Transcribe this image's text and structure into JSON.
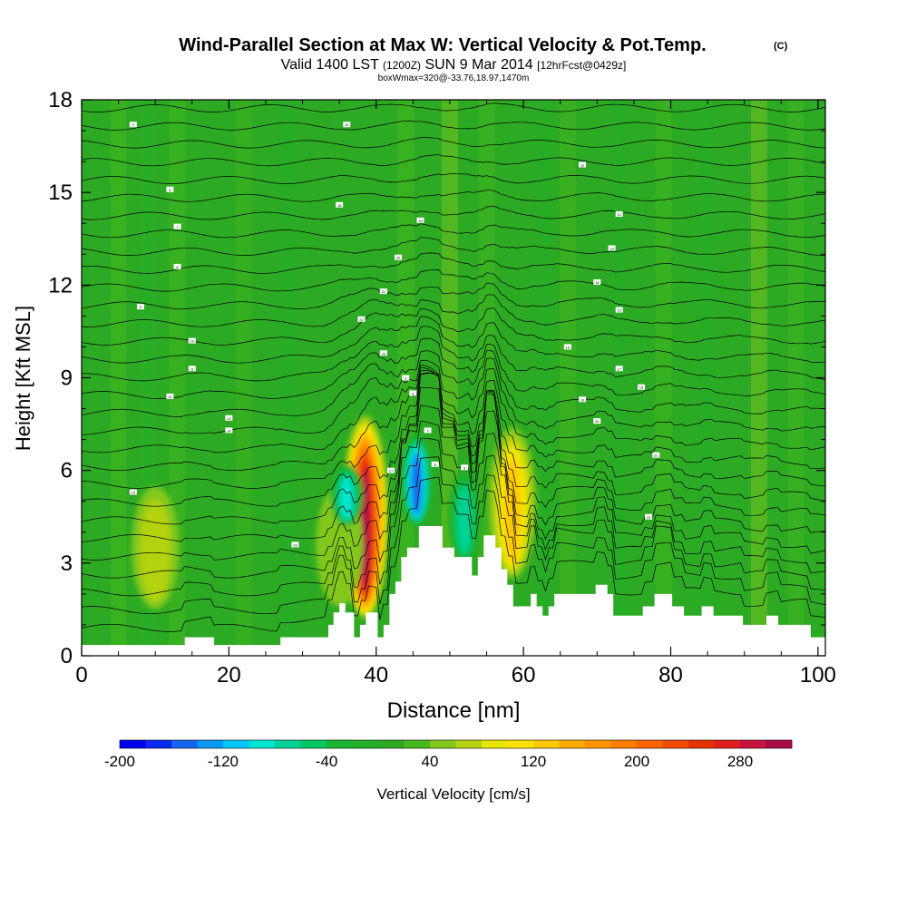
{
  "chart_data": {
    "type": "heatmap",
    "title": "Wind-Parallel Section at Max W: Vertical Velocity & Pot.Temp.",
    "title_mark": "(C)",
    "subtitle_main": "Valid 1400 LST",
    "subtitle_z": "(1200Z)",
    "subtitle_date": "SUN 9 Mar 2014",
    "subtitle_fcst": "[12hrFcst@0429z]",
    "subtitle_box": "boxWmax=320@-33.76,18.97,1470m",
    "xlabel": "Distance [nm]",
    "ylabel": "Height [Kft MSL]",
    "xlim": [
      0,
      101
    ],
    "ylim": [
      0,
      18
    ],
    "x_ticks": [
      "0",
      "20",
      "40",
      "60",
      "80",
      "100"
    ],
    "y_ticks": [
      "0",
      "3",
      "6",
      "9",
      "12",
      "15",
      "18"
    ],
    "colorbar": {
      "label": "Vertical Velocity [cm/s]",
      "ticks": [
        "-200",
        "-120",
        "-40",
        "40",
        "120",
        "200",
        "280"
      ],
      "levels": [
        -200,
        -180,
        -160,
        -140,
        -120,
        -100,
        -80,
        -60,
        -40,
        -20,
        0,
        20,
        40,
        60,
        80,
        100,
        120,
        140,
        160,
        180,
        200,
        220,
        240,
        260,
        280,
        300,
        320
      ],
      "colors": [
        "#0000ee",
        "#0a28f0",
        "#1464f0",
        "#0a96f5",
        "#00c8f8",
        "#00e6d2",
        "#00d296",
        "#00c864",
        "#19b432",
        "#23af28",
        "#2daa23",
        "#46b91e",
        "#82c81e",
        "#b4d20f",
        "#e6e600",
        "#ffe100",
        "#ffc800",
        "#ffaa00",
        "#ff9600",
        "#ff7d00",
        "#ff6400",
        "#f04b00",
        "#e63200",
        "#e11e1e",
        "#c8143c",
        "#aa0a46"
      ]
    },
    "updrafts": [
      {
        "x": 38.5,
        "z_bottom": 1.2,
        "z_top": 7.8,
        "w_max": 320
      },
      {
        "x": 58.5,
        "z_bottom": 2.5,
        "z_top": 7.4,
        "w_max": 130
      },
      {
        "x": 10,
        "z_bottom": 1.5,
        "z_top": 5.5,
        "w_max": 80
      },
      {
        "x": 35,
        "z_bottom": 1.6,
        "z_top": 5.5,
        "w_max": 60
      }
    ],
    "downdrafts": [
      {
        "x": 45.5,
        "z_bottom": 4.2,
        "z_top": 7.2,
        "w_min": -170
      },
      {
        "x": 36,
        "z_bottom": 4.2,
        "z_top": 6.2,
        "w_min": -120
      },
      {
        "x": 52,
        "z_bottom": 3.0,
        "z_top": 6.0,
        "w_min": -90
      }
    ],
    "terrain_profile": [
      [
        0,
        0.35
      ],
      [
        14,
        0.35
      ],
      [
        14,
        0.6
      ],
      [
        18,
        0.6
      ],
      [
        18,
        0.35
      ],
      [
        27,
        0.35
      ],
      [
        27,
        0.6
      ],
      [
        33.5,
        0.6
      ],
      [
        33.5,
        1.0
      ],
      [
        34.2,
        1.0
      ],
      [
        34.2,
        1.4
      ],
      [
        35,
        1.4
      ],
      [
        35,
        1.7
      ],
      [
        35.8,
        1.7
      ],
      [
        35.8,
        1.4
      ],
      [
        37,
        1.4
      ],
      [
        37,
        0.6
      ],
      [
        37.8,
        0.6
      ],
      [
        37.8,
        1.0
      ],
      [
        38.6,
        1.0
      ],
      [
        38.6,
        1.4
      ],
      [
        40.2,
        1.4
      ],
      [
        40.2,
        0.6
      ],
      [
        41,
        0.6
      ],
      [
        41,
        1.0
      ],
      [
        41.8,
        1.0
      ],
      [
        41.8,
        2.0
      ],
      [
        42.6,
        2.0
      ],
      [
        42.6,
        2.4
      ],
      [
        43.4,
        2.4
      ],
      [
        43.4,
        3.2
      ],
      [
        44.2,
        3.2
      ],
      [
        44.2,
        3.5
      ],
      [
        45.8,
        3.5
      ],
      [
        45.8,
        4.2
      ],
      [
        49,
        4.2
      ],
      [
        49,
        3.5
      ],
      [
        50.6,
        3.5
      ],
      [
        50.6,
        3.2
      ],
      [
        53,
        3.2
      ],
      [
        53,
        2.6
      ],
      [
        53.8,
        2.6
      ],
      [
        53.8,
        3.2
      ],
      [
        54.6,
        3.2
      ],
      [
        54.6,
        3.9
      ],
      [
        56.2,
        3.9
      ],
      [
        56.2,
        3.5
      ],
      [
        57,
        3.5
      ],
      [
        57,
        2.8
      ],
      [
        57.8,
        2.8
      ],
      [
        57.8,
        2.3
      ],
      [
        58.6,
        2.3
      ],
      [
        58.6,
        1.6
      ],
      [
        61,
        1.6
      ],
      [
        61,
        2.0
      ],
      [
        61.8,
        2.0
      ],
      [
        61.8,
        1.6
      ],
      [
        62.6,
        1.6
      ],
      [
        62.6,
        1.3
      ],
      [
        63.4,
        1.3
      ],
      [
        63.4,
        1.6
      ],
      [
        64.2,
        1.6
      ],
      [
        64.2,
        2.0
      ],
      [
        69.8,
        2.0
      ],
      [
        69.8,
        2.3
      ],
      [
        71.4,
        2.3
      ],
      [
        71.4,
        2.0
      ],
      [
        72.2,
        2.0
      ],
      [
        72.2,
        1.3
      ],
      [
        76.2,
        1.3
      ],
      [
        76.2,
        1.6
      ],
      [
        77.8,
        1.6
      ],
      [
        77.8,
        2.0
      ],
      [
        80.2,
        2.0
      ],
      [
        80.2,
        1.6
      ],
      [
        81.8,
        1.6
      ],
      [
        81.8,
        1.3
      ],
      [
        84.2,
        1.3
      ],
      [
        84.2,
        1.6
      ],
      [
        85.8,
        1.6
      ],
      [
        85.8,
        1.3
      ],
      [
        89.8,
        1.3
      ],
      [
        89.8,
        1.0
      ],
      [
        93,
        1.0
      ],
      [
        93,
        1.3
      ],
      [
        94.6,
        1.3
      ],
      [
        94.6,
        1.0
      ],
      [
        99,
        1.0
      ],
      [
        99,
        0.6
      ],
      [
        101,
        0.6
      ]
    ],
    "isentrope_labels": [
      "3",
      "5",
      "7",
      "8",
      "9",
      "10",
      "11",
      "12",
      "13",
      "14",
      "15",
      "16",
      "17",
      "18",
      "19",
      "20",
      "21",
      "22",
      "23"
    ]
  }
}
